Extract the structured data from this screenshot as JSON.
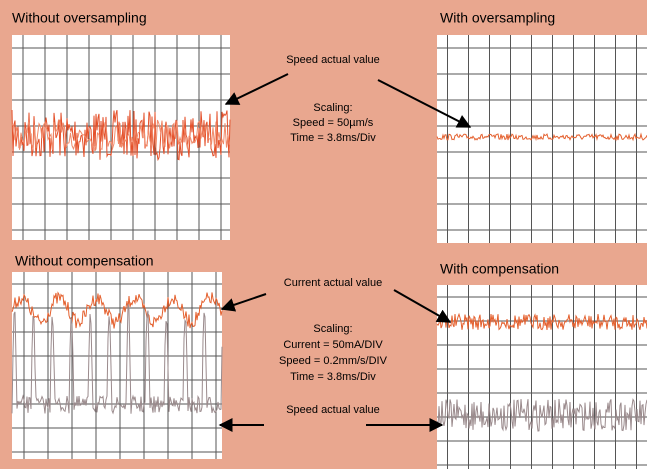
{
  "panels": [
    {
      "title": "Without oversampling"
    },
    {
      "title": "With oversampling"
    },
    {
      "title": "Without compensation"
    },
    {
      "title": "With compensation"
    }
  ],
  "top": {
    "label": "Speed actual value",
    "scaling": [
      "Scaling:",
      "Speed = 50µm/s",
      "Time = 3.8ms/Div"
    ]
  },
  "bottom": {
    "current_label": "Current actual value",
    "scaling": [
      "Scaling:",
      "Current = 50mA/DIV",
      "Speed = 0.2mm/s/DIV",
      "Time = 3.8ms/Div"
    ],
    "speed_label": "Speed actual value"
  }
}
